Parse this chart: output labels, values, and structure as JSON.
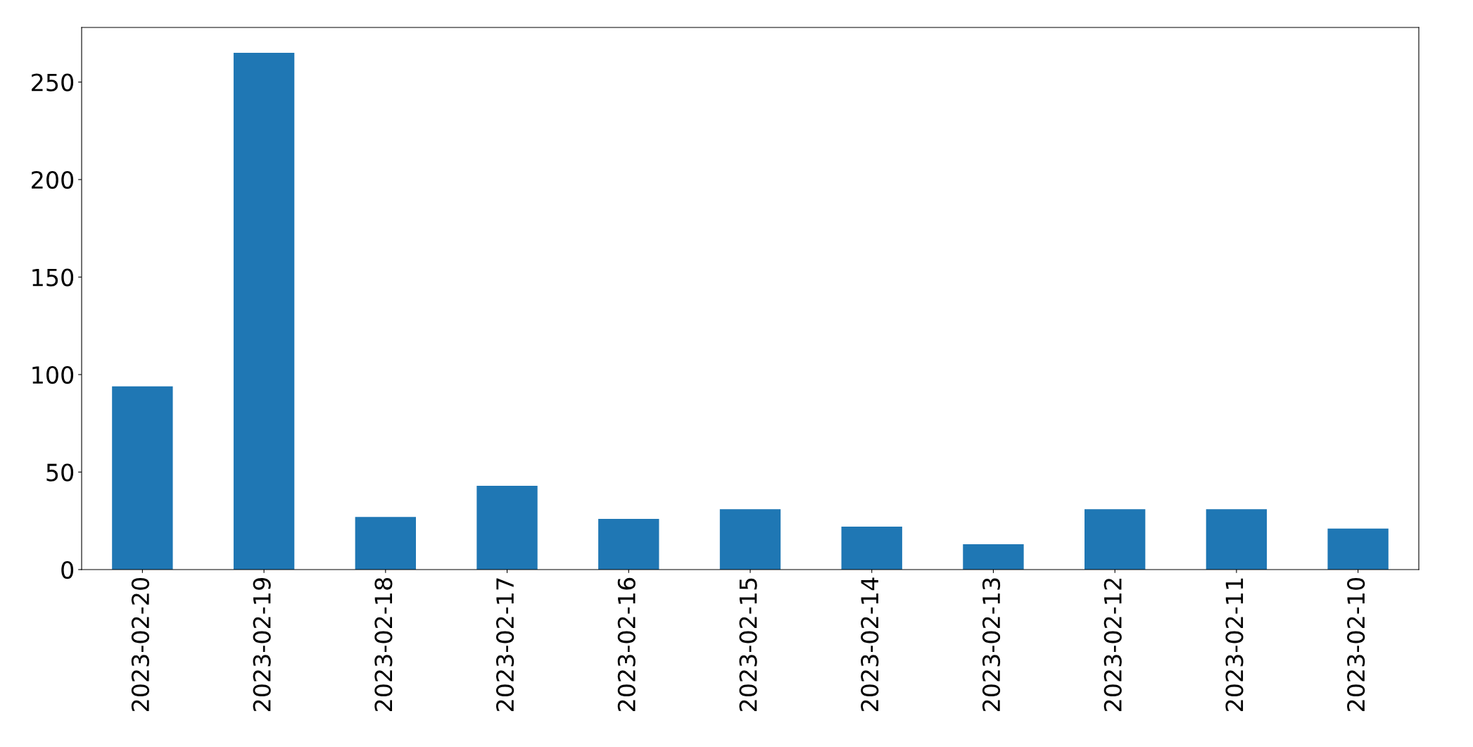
{
  "chart_data": {
    "type": "bar",
    "categories": [
      "2023-02-20",
      "2023-02-19",
      "2023-02-18",
      "2023-02-17",
      "2023-02-16",
      "2023-02-15",
      "2023-02-14",
      "2023-02-13",
      "2023-02-12",
      "2023-02-11",
      "2023-02-10"
    ],
    "values": [
      94,
      265,
      27,
      43,
      26,
      31,
      22,
      13,
      31,
      31,
      21
    ],
    "color": "#1f77b4",
    "ylim": [
      0,
      278
    ],
    "yticks": [
      0,
      50,
      100,
      150,
      200,
      250
    ],
    "grid": false
  }
}
